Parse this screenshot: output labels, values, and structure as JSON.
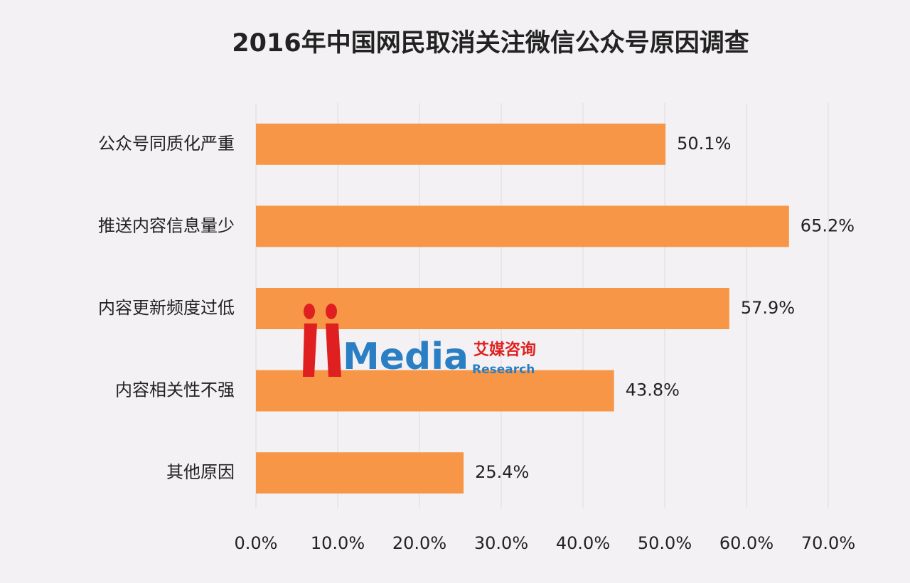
{
  "chart_data": {
    "type": "hbar",
    "title": "2016年中国网民取消关注微信公众号原因调查",
    "categories": [
      "公众号同质化严重",
      "推送内容信息量少",
      "内容更新频度过低",
      "内容相关性不强",
      "其他原因"
    ],
    "values": [
      50.1,
      65.2,
      57.9,
      43.8,
      25.4
    ],
    "value_labels": [
      "50.1%",
      "65.2%",
      "57.9%",
      "43.8%",
      "25.4%"
    ],
    "color": "#f79646",
    "xlim": [
      0,
      70
    ],
    "xticks": [
      {
        "value": 0,
        "label": "0.0%"
      },
      {
        "value": 10,
        "label": "10.0%"
      },
      {
        "value": 20,
        "label": "20.0%"
      },
      {
        "value": 30,
        "label": "30.0%"
      },
      {
        "value": 40,
        "label": "40.0%"
      },
      {
        "value": 50,
        "label": "50.0%"
      },
      {
        "value": 60,
        "label": "60.0%"
      },
      {
        "value": 70,
        "label": "70.0%"
      }
    ],
    "grid": true,
    "watermark": {
      "brand": "Media",
      "cn": "艾媒咨询",
      "en": "Research"
    }
  }
}
